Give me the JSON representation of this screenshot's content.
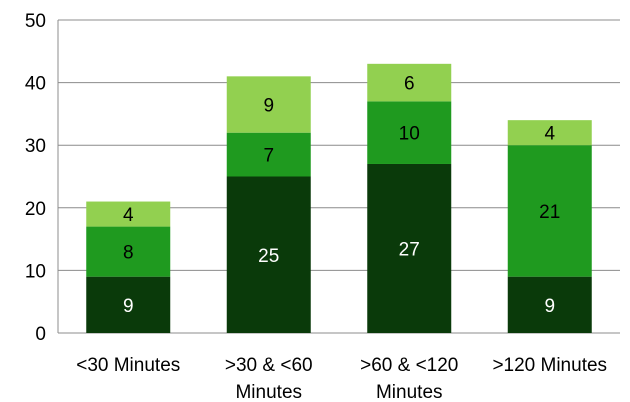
{
  "chart_data": {
    "type": "bar",
    "stacked": true,
    "categories": [
      [
        "<30 Minutes"
      ],
      [
        ">30 & <60",
        "Minutes"
      ],
      [
        ">60 & <120",
        "Minutes"
      ],
      [
        ">120 Minutes"
      ]
    ],
    "series": [
      {
        "values": [
          9,
          25,
          27,
          9
        ],
        "color": "#0a3a0a",
        "label_color": "#ffffff"
      },
      {
        "values": [
          8,
          7,
          10,
          21
        ],
        "color": "#1f9a1f",
        "label_color": "#000000"
      },
      {
        "values": [
          4,
          9,
          6,
          4
        ],
        "color": "#92d050",
        "label_color": "#000000"
      }
    ],
    "ylim": [
      0,
      50
    ],
    "yticks": [
      0,
      10,
      20,
      30,
      40,
      50
    ],
    "grid": true,
    "legend": "none",
    "colors": {
      "grid": "#8c8c8c",
      "axis": "#8c8c8c"
    }
  }
}
